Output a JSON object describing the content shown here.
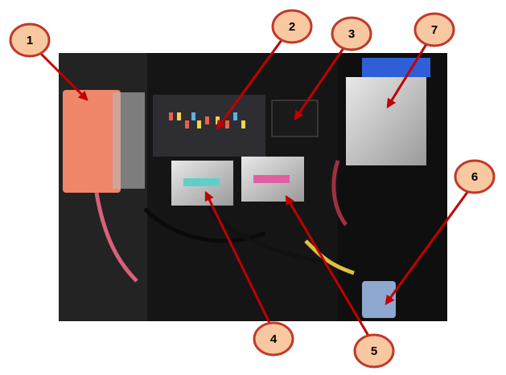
{
  "callouts": [
    {
      "label": "1"
    },
    {
      "label": "2"
    },
    {
      "label": "3"
    },
    {
      "label": "4"
    },
    {
      "label": "5"
    },
    {
      "label": "6"
    },
    {
      "label": "7"
    }
  ]
}
